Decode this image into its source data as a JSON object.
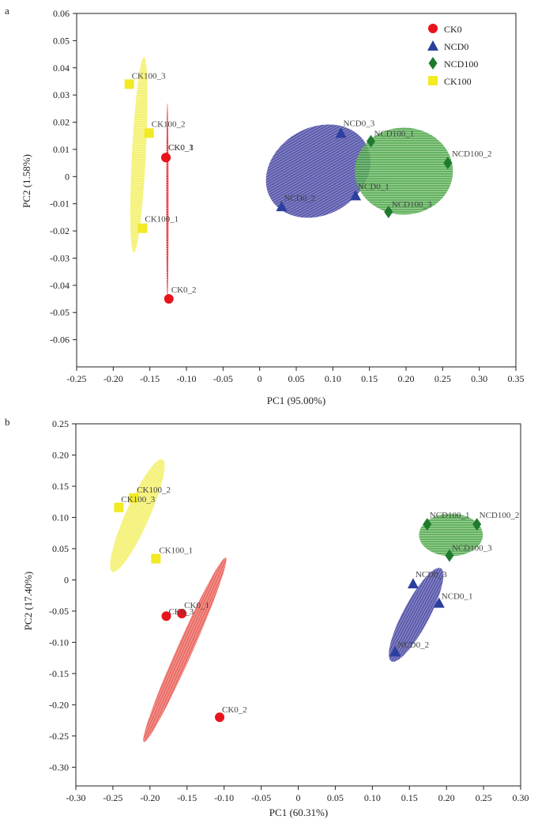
{
  "chart_data": [
    {
      "type": "scatter",
      "panel_label": "a",
      "xlabel": "PC1 (95.00%)",
      "ylabel": "PC2 (1.58%)",
      "xlim": [
        -0.25,
        0.35
      ],
      "ylim": [
        -0.07,
        0.06
      ],
      "x_ticks": [
        -0.25,
        -0.2,
        -0.15,
        -0.1,
        -0.05,
        0,
        0.05,
        0.1,
        0.15,
        0.2,
        0.25,
        0.3,
        0.35
      ],
      "x_tick_labels": [
        "-0.25",
        "-0.20",
        "-0.15",
        "-0.10",
        "-0.05",
        "0",
        "0.05",
        "0.10",
        "0.15",
        "0.20",
        "0.25",
        "0.30",
        "0.35"
      ],
      "y_ticks": [
        -0.06,
        -0.05,
        -0.04,
        -0.03,
        -0.02,
        -0.01,
        0,
        0.01,
        0.02,
        0.03,
        0.04,
        0.05,
        0.06
      ],
      "y_tick_labels": [
        "-0.06",
        "-0.05",
        "-0.04",
        "-0.03",
        "-0.02",
        "-0.01",
        "0",
        "0.01",
        "0.02",
        "0.03",
        "0.04",
        "0.05",
        "0.06"
      ],
      "legend_position": "top-right",
      "series": [
        {
          "name": "CK0",
          "marker": "circle",
          "color": "#e8141b",
          "ellipse": {
            "cx": -0.126,
            "cy": -0.009,
            "rx": 0.0015,
            "ry": 0.036,
            "angle_deg": 0,
            "color": "#e8141b"
          },
          "points": [
            {
              "label": "CK0_1",
              "x": -0.128,
              "y": 0.007
            },
            {
              "label": "CK0_3",
              "x": -0.128,
              "y": 0.007
            },
            {
              "label": "CK0_2",
              "x": -0.124,
              "y": -0.045
            }
          ]
        },
        {
          "name": "NCD0",
          "marker": "triangle",
          "color": "#2b3f9e",
          "ellipse": {
            "cx": 0.08,
            "cy": 0.002,
            "rx": 0.075,
            "ry": 0.016,
            "angle_deg": 30,
            "color": "#3d3c9e"
          },
          "points": [
            {
              "label": "NCD0_3",
              "x": 0.111,
              "y": 0.016
            },
            {
              "label": "NCD0_2",
              "x": 0.03,
              "y": -0.011
            },
            {
              "label": "NCD0_1",
              "x": 0.131,
              "y": -0.007
            }
          ]
        },
        {
          "name": "NCD100",
          "marker": "diamond",
          "color": "#1f7a2e",
          "ellipse": {
            "cx": 0.197,
            "cy": 0.002,
            "rx": 0.067,
            "ry": 0.016,
            "angle_deg": 0,
            "color": "#4aa645"
          },
          "points": [
            {
              "label": "NCD100_1",
              "x": 0.152,
              "y": 0.013
            },
            {
              "label": "NCD100_2",
              "x": 0.257,
              "y": 0.005
            },
            {
              "label": "NCD100_3",
              "x": 0.176,
              "y": -0.013
            }
          ]
        },
        {
          "name": "CK100",
          "marker": "square",
          "color": "#f2ea23",
          "ellipse": {
            "cx": -0.165,
            "cy": 0.008,
            "rx": 0.0095,
            "ry": 0.036,
            "angle_deg": -3,
            "color": "#f2ee5a"
          },
          "points": [
            {
              "label": "CK100_3",
              "x": -0.178,
              "y": 0.034
            },
            {
              "label": "CK100_2",
              "x": -0.151,
              "y": 0.016
            },
            {
              "label": "CK100_1",
              "x": -0.16,
              "y": -0.019
            }
          ]
        }
      ]
    },
    {
      "type": "scatter",
      "panel_label": "b",
      "xlabel": "PC1 (60.31%)",
      "ylabel": "PC2 (17.40%)",
      "xlim": [
        -0.3,
        0.3
      ],
      "ylim": [
        -0.33,
        0.25
      ],
      "x_ticks": [
        -0.3,
        -0.25,
        -0.2,
        -0.15,
        -0.1,
        -0.05,
        0,
        0.05,
        0.1,
        0.15,
        0.2,
        0.25,
        0.3
      ],
      "x_tick_labels": [
        "-0.30",
        "-0.25",
        "-0.20",
        "-0.15",
        "-0.10",
        "-0.05",
        "0",
        "0.05",
        "0.10",
        "0.15",
        "0.20",
        "0.25",
        "0.30"
      ],
      "y_ticks": [
        -0.3,
        -0.25,
        -0.2,
        -0.15,
        -0.1,
        -0.05,
        0,
        0.05,
        0.1,
        0.15,
        0.2,
        0.25
      ],
      "y_tick_labels": [
        "-0.30",
        "-0.25",
        "-0.20",
        "-0.15",
        "-0.10",
        "-0.05",
        "0",
        "0.05",
        "0.10",
        "0.15",
        "0.20",
        "0.25"
      ],
      "series": [
        {
          "name": "CK0",
          "marker": "circle",
          "color": "#e8141b",
          "ellipse": {
            "cx": -0.153,
            "cy": -0.112,
            "rx": 0.136,
            "ry": 0.0125,
            "angle_deg": 66,
            "color": "#e8524a"
          },
          "points": [
            {
              "label": "CK0_1",
              "x": -0.157,
              "y": -0.054
            },
            {
              "label": "CK0_3",
              "x": -0.178,
              "y": -0.058
            },
            {
              "label": "CK0_2",
              "x": -0.106,
              "y": -0.22
            }
          ]
        },
        {
          "name": "NCD0",
          "marker": "triangle",
          "color": "#2b3f9e",
          "ellipse": {
            "cx": 0.159,
            "cy": -0.056,
            "rx": 0.071,
            "ry": 0.021,
            "angle_deg": 62,
            "color": "#3d3c9e"
          },
          "points": [
            {
              "label": "NCD0_3",
              "x": 0.155,
              "y": -0.006
            },
            {
              "label": "NCD0_1",
              "x": 0.19,
              "y": -0.037
            },
            {
              "label": "NCD0_2",
              "x": 0.131,
              "y": -0.115
            }
          ]
        },
        {
          "name": "NCD100",
          "marker": "diamond",
          "color": "#1f7a2e",
          "ellipse": {
            "cx": 0.206,
            "cy": 0.072,
            "rx": 0.043,
            "ry": 0.034,
            "angle_deg": 0,
            "color": "#4aa645"
          },
          "points": [
            {
              "label": "NCD100_1",
              "x": 0.174,
              "y": 0.089
            },
            {
              "label": "NCD100_2",
              "x": 0.241,
              "y": 0.089
            },
            {
              "label": "NCD100_3",
              "x": 0.204,
              "y": 0.039
            }
          ]
        },
        {
          "name": "CK100",
          "marker": "square",
          "color": "#f2ea23",
          "ellipse": {
            "cx": -0.217,
            "cy": 0.103,
            "rx": 0.083,
            "ry": 0.019,
            "angle_deg": 66,
            "color": "#f2ee5a"
          },
          "points": [
            {
              "label": "CK100_2",
              "x": -0.222,
              "y": 0.131
            },
            {
              "label": "CK100_3",
              "x": -0.242,
              "y": 0.116
            },
            {
              "label": "CK100_1",
              "x": -0.192,
              "y": 0.034
            }
          ]
        }
      ]
    }
  ]
}
